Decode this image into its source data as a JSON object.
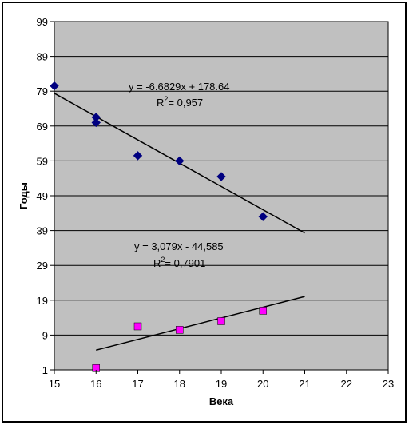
{
  "chart_data": {
    "type": "scatter",
    "xlabel": "Века",
    "ylabel": "Годы",
    "xlim": [
      15,
      23
    ],
    "ylim": [
      -1,
      99
    ],
    "x_ticks": [
      15,
      16,
      17,
      18,
      19,
      20,
      21,
      22,
      23
    ],
    "y_ticks": [
      -1,
      9,
      19,
      29,
      39,
      49,
      59,
      69,
      79,
      89,
      99
    ],
    "grid": "horizontal",
    "legend": "none",
    "colors": {
      "plot_background": "#c0c0c0",
      "frame": "#000000",
      "series1_marker": "#000080",
      "series2_marker": "#ff00ff",
      "trendline": "#000000"
    },
    "series": [
      {
        "marker": "diamond",
        "x": [
          15,
          16,
          16,
          17,
          18,
          19,
          20
        ],
        "y": [
          80.5,
          71.5,
          70,
          60.5,
          59,
          54.5,
          43
        ],
        "trendline": {
          "slope": -6.6829,
          "intercept": 178.64,
          "x_range": [
            15,
            21
          ]
        },
        "equation_text": "y = -6.6829x + 178.64",
        "r2_text": "= 0,957"
      },
      {
        "marker": "square",
        "x": [
          16,
          17,
          18,
          19,
          20
        ],
        "y": [
          -0.5,
          11.5,
          10.5,
          13,
          16
        ],
        "trendline": {
          "slope": 3.079,
          "intercept": -44.585,
          "x_range": [
            16,
            21
          ]
        },
        "equation_text": "y = 3,079x - 44,585",
        "r2_text": "= 0,7901"
      }
    ]
  },
  "r2_label": {
    "base": "R",
    "sup": "2"
  }
}
